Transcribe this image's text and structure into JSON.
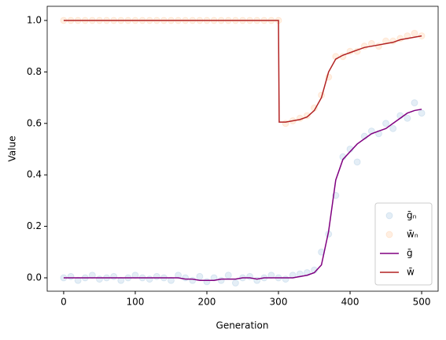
{
  "chart_data": {
    "type": "scatter",
    "xlabel": "Generation",
    "ylabel": "Value",
    "xlim": [
      -23,
      523
    ],
    "ylim": [
      -0.052,
      1.055
    ],
    "xticks": [
      0,
      100,
      200,
      300,
      400,
      500
    ],
    "yticks": [
      {
        "value": 0,
        "label": "0.0"
      },
      0.2,
      0.4,
      0.6,
      0.8,
      {
        "value": 1,
        "label": "1.0"
      }
    ],
    "legend": "lower right",
    "series": [
      {
        "name": "ḡₙ",
        "style": "scatter",
        "color": "#1f77b4",
        "x": [
          0,
          10,
          20,
          30,
          40,
          50,
          60,
          70,
          80,
          90,
          100,
          110,
          120,
          130,
          140,
          150,
          160,
          170,
          180,
          190,
          200,
          210,
          220,
          230,
          240,
          250,
          260,
          270,
          280,
          290,
          300,
          310,
          320,
          330,
          340,
          350,
          360,
          370,
          380,
          390,
          400,
          410,
          420,
          430,
          440,
          450,
          460,
          470,
          480,
          490,
          500
        ],
        "values": [
          0,
          0.005,
          -0.01,
          0,
          0.01,
          -0.005,
          0,
          0.005,
          -0.01,
          0,
          0.01,
          0,
          -0.005,
          0.005,
          0,
          -0.01,
          0.01,
          0,
          -0.01,
          0.005,
          -0.015,
          0,
          -0.01,
          0.01,
          -0.02,
          0,
          0.005,
          -0.01,
          0,
          0.01,
          0,
          -0.005,
          0.01,
          0.015,
          0.02,
          0.03,
          0.1,
          0.17,
          0.32,
          0.47,
          0.5,
          0.45,
          0.55,
          0.57,
          0.56,
          0.6,
          0.58,
          0.63,
          0.62,
          0.68,
          0.64
        ]
      },
      {
        "name": "w̄ₙ",
        "style": "scatter",
        "color": "#ff7f0e",
        "x": [
          0,
          10,
          20,
          30,
          40,
          50,
          60,
          70,
          80,
          90,
          100,
          110,
          120,
          130,
          140,
          150,
          160,
          170,
          180,
          190,
          200,
          210,
          220,
          230,
          240,
          250,
          260,
          270,
          280,
          290,
          300,
          310,
          320,
          330,
          340,
          350,
          360,
          370,
          380,
          390,
          400,
          410,
          420,
          430,
          440,
          450,
          460,
          470,
          480,
          490,
          500
        ],
        "values": [
          1,
          1,
          1,
          1,
          1,
          1,
          1,
          1,
          1,
          1,
          1,
          1,
          1,
          1,
          1,
          1,
          1,
          1,
          1,
          1,
          1,
          1,
          1,
          1,
          1,
          1,
          1,
          1,
          1,
          1,
          1,
          0.6,
          0.61,
          0.62,
          0.63,
          0.66,
          0.71,
          0.78,
          0.86,
          0.86,
          0.88,
          0.88,
          0.9,
          0.91,
          0.9,
          0.92,
          0.92,
          0.93,
          0.94,
          0.95,
          0.94
        ]
      },
      {
        "name": "ḡ",
        "style": "line",
        "color": "#800080",
        "x": [
          0,
          10,
          20,
          30,
          40,
          50,
          60,
          70,
          80,
          90,
          100,
          110,
          120,
          130,
          140,
          150,
          160,
          170,
          180,
          190,
          200,
          210,
          220,
          230,
          240,
          250,
          260,
          270,
          280,
          290,
          300,
          310,
          320,
          330,
          340,
          350,
          360,
          370,
          380,
          390,
          400,
          410,
          420,
          430,
          440,
          450,
          460,
          470,
          480,
          490,
          500
        ],
        "values": [
          0,
          0,
          0,
          0,
          0,
          0,
          0,
          0,
          0,
          0,
          0,
          0,
          0,
          0,
          0,
          0,
          0,
          -0.005,
          -0.005,
          -0.01,
          -0.01,
          -0.01,
          -0.005,
          -0.005,
          -0.005,
          0,
          0,
          -0.005,
          0,
          0,
          0,
          0,
          0,
          0.005,
          0.01,
          0.02,
          0.05,
          0.18,
          0.38,
          0.46,
          0.49,
          0.52,
          0.54,
          0.56,
          0.57,
          0.58,
          0.6,
          0.62,
          0.64,
          0.65,
          0.655
        ]
      },
      {
        "name": "w̄",
        "style": "line",
        "color": "#b22222",
        "x": [
          0,
          10,
          20,
          30,
          40,
          50,
          60,
          70,
          80,
          90,
          100,
          110,
          120,
          130,
          140,
          150,
          160,
          170,
          180,
          190,
          200,
          210,
          220,
          230,
          240,
          250,
          260,
          270,
          280,
          290,
          300,
          301,
          310,
          320,
          330,
          340,
          350,
          360,
          370,
          380,
          390,
          400,
          410,
          420,
          430,
          440,
          450,
          460,
          470,
          480,
          490,
          500
        ],
        "values": [
          1,
          1,
          1,
          1,
          1,
          1,
          1,
          1,
          1,
          1,
          1,
          1,
          1,
          1,
          1,
          1,
          1,
          1,
          1,
          1,
          1,
          1,
          1,
          1,
          1,
          1,
          1,
          1,
          1,
          1,
          1,
          0.605,
          0.605,
          0.61,
          0.615,
          0.625,
          0.65,
          0.7,
          0.8,
          0.85,
          0.865,
          0.875,
          0.885,
          0.895,
          0.9,
          0.905,
          0.91,
          0.915,
          0.925,
          0.93,
          0.935,
          0.94
        ]
      }
    ]
  }
}
